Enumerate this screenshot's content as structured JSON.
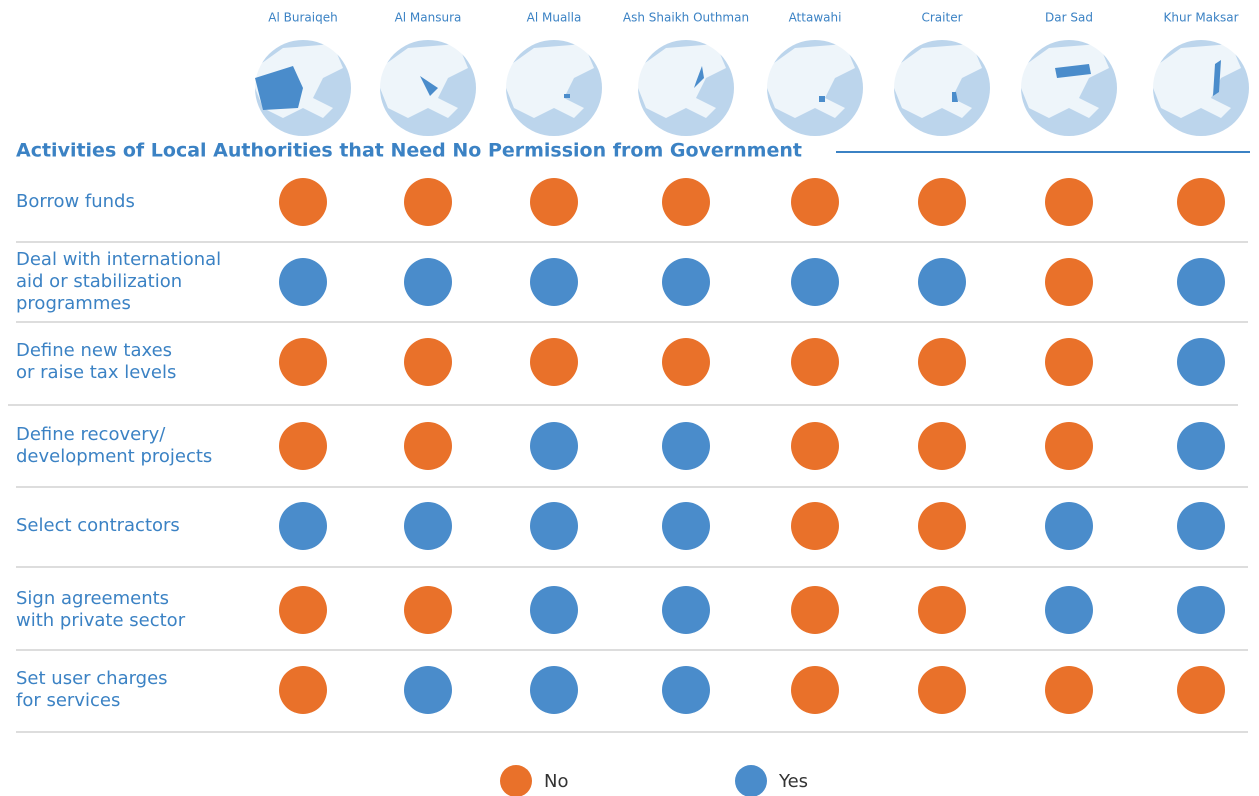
{
  "districts": [
    "Al Buraiqeh",
    "Al Mansura",
    "Al Mualla",
    "Ash Shaikh Outhman",
    "Attawahi",
    "Craiter",
    "Dar Sad",
    "Khur Maksar"
  ],
  "title": "Activities of Local Authorities that Need No Permission from Government",
  "legend": [
    {
      "label": "No",
      "color": "#e9712a"
    },
    {
      "label": "Yes",
      "color": "#4a8ccb"
    }
  ],
  "rows": [
    {
      "label": [
        "Borrow funds"
      ],
      "values": [
        "No",
        "No",
        "No",
        "No",
        "No",
        "No",
        "No",
        "No"
      ]
    },
    {
      "label": [
        "Deal with international",
        "aid or stabilization",
        "programmes"
      ],
      "values": [
        "Yes",
        "Yes",
        "Yes",
        "Yes",
        "Yes",
        "Yes",
        "No",
        "Yes"
      ]
    },
    {
      "label": [
        "Define new taxes",
        "or raise tax levels"
      ],
      "values": [
        "No",
        "No",
        "No",
        "No",
        "No",
        "No",
        "No",
        "Yes"
      ]
    },
    {
      "label": [
        "Define recovery/",
        "development projects"
      ],
      "values": [
        "No",
        "No",
        "Yes",
        "Yes",
        "No",
        "No",
        "No",
        "Yes"
      ]
    },
    {
      "label": [
        "Select contractors"
      ],
      "values": [
        "Yes",
        "Yes",
        "Yes",
        "Yes",
        "No",
        "No",
        "Yes",
        "Yes"
      ]
    },
    {
      "label": [
        "Sign agreements",
        "with private sector"
      ],
      "values": [
        "No",
        "No",
        "Yes",
        "Yes",
        "No",
        "No",
        "Yes",
        "Yes"
      ]
    },
    {
      "label": [
        "Set user charges",
        "for services"
      ],
      "values": [
        "No",
        "Yes",
        "Yes",
        "Yes",
        "No",
        "No",
        "No",
        "No"
      ]
    }
  ]
}
